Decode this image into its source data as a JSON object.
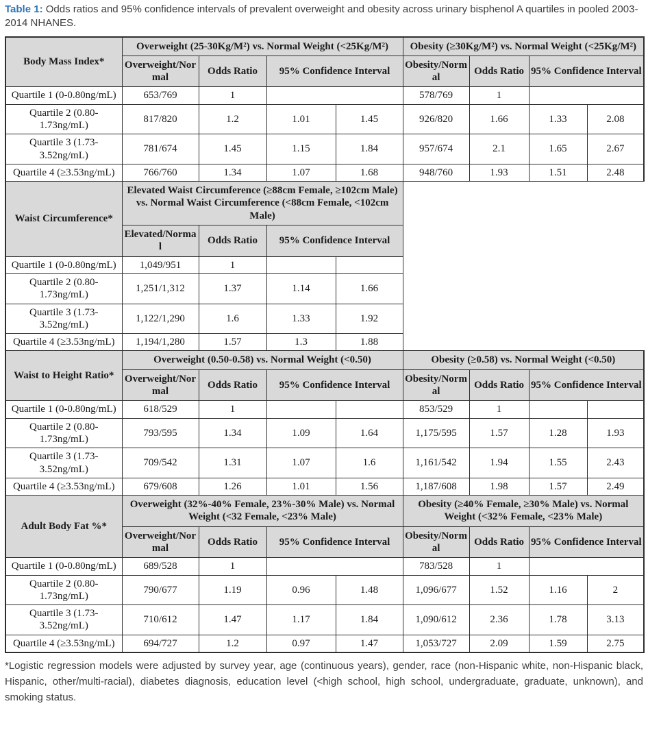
{
  "caption": {
    "label": "Table 1:",
    "text": "Odds ratios and 95% confidence intervals of prevalent overweight and obesity across urinary bisphenol A quartiles in pooled 2003-2014 NHANES."
  },
  "footnote": "*Logistic regression models were adjusted by survey year, age (continuous years), gender, race (non-Hispanic white, non-Hispanic black, Hispanic, other/multi-racial), diabetes diagnosis, education level (<high school, high school, undergraduate, graduate, unknown), and smoking status.",
  "colors": {
    "accent": "#2e75b6",
    "header_bg": "#d9d9d9",
    "border": "#2e2e2e",
    "text": "#1b1b1b"
  },
  "table": {
    "sections": [
      {
        "id": "bmi",
        "label": "Body Mass Index*",
        "right_empty": false,
        "groups": [
          {
            "header": "Overweight (25-30Kg/M²) vs. Normal Weight (<25Kg/M²)",
            "sub": [
              "Overweight/Normal",
              "Odds Ratio",
              "95% Confidence Interval"
            ]
          },
          {
            "header": "Obesity (≥30Kg/M²) vs. Normal Weight (<25Kg/M²)",
            "sub": [
              "Obesity/Normal",
              "Odds Ratio",
              "95% Confidence Interval"
            ]
          }
        ],
        "rows": [
          {
            "label": "Quartile 1 (0-0.80ng/mL)",
            "left": [
              "653/769",
              "1",
              "",
              ""
            ],
            "left_merge": true,
            "right": [
              "578/769",
              "1",
              "",
              ""
            ],
            "right_merge": true
          },
          {
            "label": "Quartile 2 (0.80-1.73ng/mL)",
            "left": [
              "817/820",
              "1.2",
              "1.01",
              "1.45"
            ],
            "left_merge": false,
            "right": [
              "926/820",
              "1.66",
              "1.33",
              "2.08"
            ],
            "right_merge": false
          },
          {
            "label": "Quartile 3 (1.73-3.52ng/mL)",
            "left": [
              "781/674",
              "1.45",
              "1.15",
              "1.84"
            ],
            "left_merge": false,
            "right": [
              "957/674",
              "2.1",
              "1.65",
              "2.67"
            ],
            "right_merge": false
          },
          {
            "label": "Quartile 4 (≥3.53ng/mL)",
            "left": [
              "766/760",
              "1.34",
              "1.07",
              "1.68"
            ],
            "left_merge": false,
            "right": [
              "948/760",
              "1.93",
              "1.51",
              "2.48"
            ],
            "right_merge": false
          }
        ]
      },
      {
        "id": "waist",
        "label": "Waist Circumference*",
        "right_empty": true,
        "groups": [
          {
            "header": "Elevated Waist Circumference (≥88cm Female, ≥102cm Male) vs. Normal Waist Circumference (<88cm Female, <102cm Male)",
            "sub": [
              "Elevated/Normal",
              "Odds Ratio",
              "95% Confidence Interval"
            ]
          }
        ],
        "rows": [
          {
            "label": "Quartile 1 (0-0.80ng/mL)",
            "left": [
              "1,049/951",
              "1",
              "",
              ""
            ],
            "left_merge": false,
            "right": null,
            "right_merge": false
          },
          {
            "label": "Quartile 2 (0.80-1.73ng/mL)",
            "left": [
              "1,251/1,312",
              "1.37",
              "1.14",
              "1.66"
            ],
            "left_merge": false,
            "right": null,
            "right_merge": false
          },
          {
            "label": "Quartile 3 (1.73-3.52ng/mL)",
            "left": [
              "1,122/1,290",
              "1.6",
              "1.33",
              "1.92"
            ],
            "left_merge": false,
            "right": null,
            "right_merge": false
          },
          {
            "label": "Quartile 4 (≥3.53ng/mL)",
            "left": [
              "1,194/1,280",
              "1.57",
              "1.3",
              "1.88"
            ],
            "left_merge": false,
            "right": null,
            "right_merge": false
          }
        ]
      },
      {
        "id": "whtr",
        "label": "Waist to Height Ratio*",
        "right_empty": false,
        "groups": [
          {
            "header": "Overweight (0.50-0.58) vs. Normal Weight (<0.50)",
            "sub": [
              "Overweight/Normal",
              "Odds Ratio",
              "95% Confidence Interval"
            ]
          },
          {
            "header": "Obesity (≥0.58) vs. Normal Weight (<0.50)",
            "sub": [
              "Obesity/Normal",
              "Odds Ratio",
              "95% Confidence Interval"
            ]
          }
        ],
        "rows": [
          {
            "label": "Quartile 1 (0-0.80ng/mL)",
            "left": [
              "618/529",
              "1",
              "",
              ""
            ],
            "left_merge": false,
            "right": [
              "853/529",
              "1",
              "",
              ""
            ],
            "right_merge": false
          },
          {
            "label": "Quartile 2 (0.80-1.73ng/mL)",
            "left": [
              "793/595",
              "1.34",
              "1.09",
              "1.64"
            ],
            "left_merge": false,
            "right": [
              "1,175/595",
              "1.57",
              "1.28",
              "1.93"
            ],
            "right_merge": false
          },
          {
            "label": "Quartile 3 (1.73-3.52ng/mL)",
            "left": [
              "709/542",
              "1.31",
              "1.07",
              "1.6"
            ],
            "left_merge": false,
            "right": [
              "1,161/542",
              "1.94",
              "1.55",
              "2.43"
            ],
            "right_merge": false
          },
          {
            "label": "Quartile 4 (≥3.53ng/mL)",
            "left": [
              "679/608",
              "1.26",
              "1.01",
              "1.56"
            ],
            "left_merge": false,
            "right": [
              "1,187/608",
              "1.98",
              "1.57",
              "2.49"
            ],
            "right_merge": false
          }
        ]
      },
      {
        "id": "bodyfat",
        "label": "Adult Body Fat %*",
        "right_empty": false,
        "groups": [
          {
            "header": "Overweight (32%-40% Female, 23%-30% Male) vs. Normal Weight (<32 Female, <23% Male)",
            "sub": [
              "Overweight/Normal",
              "Odds Ratio",
              "95% Confidence Interval"
            ]
          },
          {
            "header": "Obesity (≥40% Female, ≥30% Male) vs. Normal Weight (<32% Female, <23% Male)",
            "sub": [
              "Obesity/Normal",
              "Odds Ratio",
              "95% Confidence Interval"
            ]
          }
        ],
        "rows": [
          {
            "label": "Quartile 1 (0-0.80ng/mL)",
            "left": [
              "689/528",
              "1",
              "",
              ""
            ],
            "left_merge": true,
            "right": [
              "783/528",
              "1",
              "",
              ""
            ],
            "right_merge": true
          },
          {
            "label": "Quartile 2 (0.80-1.73ng/mL)",
            "left": [
              "790/677",
              "1.19",
              "0.96",
              "1.48"
            ],
            "left_merge": false,
            "right": [
              "1,096/677",
              "1.52",
              "1.16",
              "2"
            ],
            "right_merge": false
          },
          {
            "label": "Quartile 3 (1.73-3.52ng/mL)",
            "left": [
              "710/612",
              "1.47",
              "1.17",
              "1.84"
            ],
            "left_merge": false,
            "right": [
              "1,090/612",
              "2.36",
              "1.78",
              "3.13"
            ],
            "right_merge": false
          },
          {
            "label": "Quartile 4 (≥3.53ng/mL)",
            "left": [
              "694/727",
              "1.2",
              "0.97",
              "1.47"
            ],
            "left_merge": false,
            "right": [
              "1,053/727",
              "2.09",
              "1.59",
              "2.75"
            ],
            "right_merge": false
          }
        ]
      }
    ]
  }
}
